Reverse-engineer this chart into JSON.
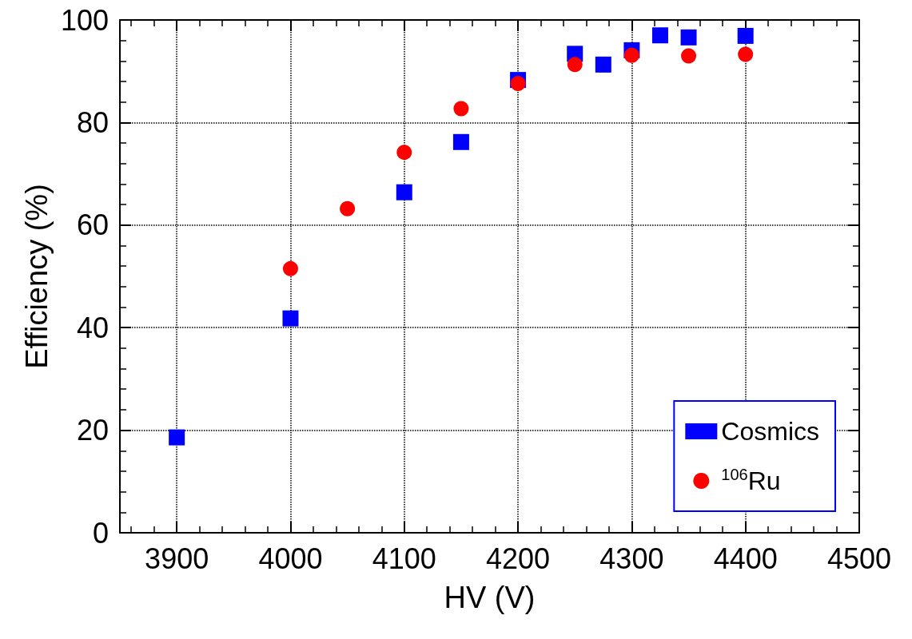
{
  "chart_data": {
    "type": "scatter",
    "xlabel": "HV (V)",
    "ylabel": "Efficiency (%)",
    "xlim": [
      3850,
      4500
    ],
    "xticks": [
      3900,
      4000,
      4100,
      4200,
      4300,
      4400,
      4500
    ],
    "ylim": [
      0,
      100
    ],
    "yticks": [
      0,
      20,
      40,
      60,
      80,
      100
    ],
    "grid": true,
    "legend": "bottom right",
    "series": [
      {
        "name": "Cosmics",
        "color": "#0000ff",
        "marker": "square",
        "x": [
          3900,
          4000,
          4100,
          4150,
          4200,
          4250,
          4275,
          4300,
          4325,
          4350,
          4400
        ],
        "values": [
          18.6,
          41.8,
          66.4,
          76.2,
          88.3,
          93.4,
          91.3,
          94.1,
          97.0,
          96.6,
          96.9
        ]
      },
      {
        "name": "$^{106}$Ru",
        "color": "#ff0000",
        "marker": "circle",
        "x": [
          4000,
          4050,
          4100,
          4150,
          4200,
          4250,
          4300,
          4350,
          4400
        ],
        "values": [
          51.5,
          63.2,
          74.2,
          82.7,
          87.6,
          91.3,
          93.1,
          93.0,
          93.3
        ]
      }
    ]
  }
}
